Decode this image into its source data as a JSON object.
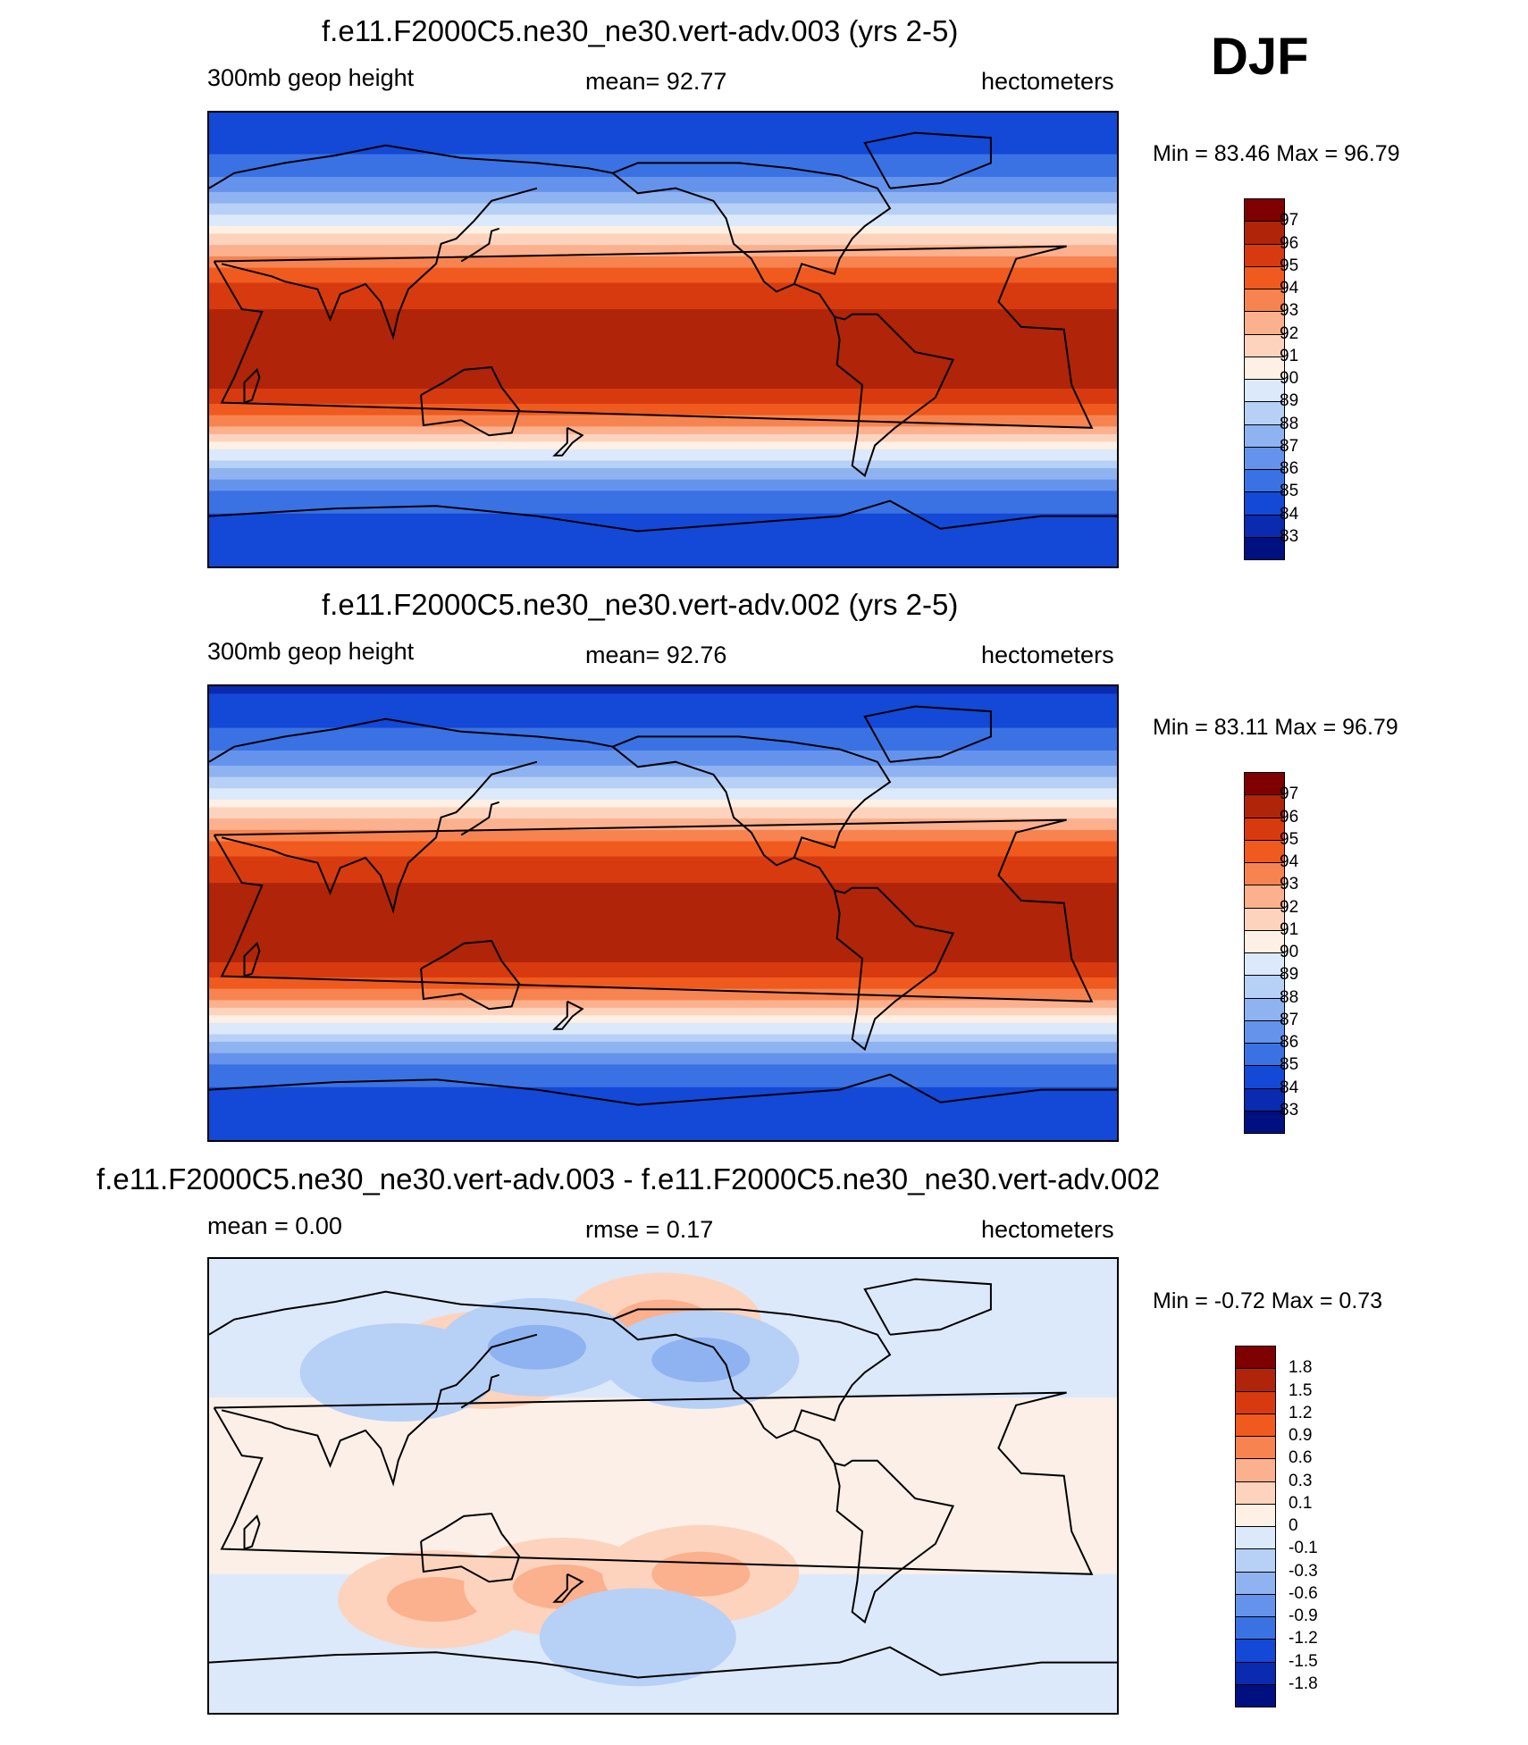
{
  "season": "DJF",
  "panels": [
    {
      "title": "f.e11.F2000C5.ne30_ne30.vert-adv.003 (yrs 2-5)",
      "left": "300mb geop height",
      "center": "mean=  92.77",
      "right": "hectometers",
      "minmax": "Min =  83.46 Max =  96.79"
    },
    {
      "title": "f.e11.F2000C5.ne30_ne30.vert-adv.002 (yrs 2-5)",
      "left": "300mb geop height",
      "center": "mean=  92.76",
      "right": "hectometers",
      "minmax": "Min =  83.11 Max =  96.79"
    },
    {
      "title": "f.e11.F2000C5.ne30_ne30.vert-adv.003 - f.e11.F2000C5.ne30_ne30.vert-adv.002",
      "left": "mean =   0.00",
      "center": "rmse =   0.17",
      "right": "hectometers",
      "minmax": "Min =  -0.72 Max =   0.73"
    }
  ],
  "chart_data": [
    {
      "type": "heatmap",
      "title": "f.e11.F2000C5.ne30_ne30.vert-adv.003 (yrs 2-5)",
      "variable": "300mb geop height",
      "units": "hectometers",
      "mean": 92.77,
      "min": 83.46,
      "max": 96.79,
      "colorbar_levels": [
        97,
        96,
        95,
        94,
        93,
        92,
        91,
        90,
        89,
        88,
        87,
        86,
        85,
        84,
        83
      ],
      "colorbar_colors": [
        "#7f0000",
        "#b0240a",
        "#d83a10",
        "#f05a1e",
        "#f78450",
        "#fbb08e",
        "#fdd3bd",
        "#fef0e4",
        "#dce9fa",
        "#b7d0f6",
        "#8eb3f0",
        "#6593ec",
        "#3a72e4",
        "#1448d6",
        "#0a2ab0",
        "#001080"
      ],
      "zonal_profile": {
        "lat": [
          90,
          80,
          70,
          60,
          50,
          40,
          30,
          20,
          10,
          0,
          -10,
          -20,
          -30,
          -40,
          -50,
          -60,
          -70,
          -80,
          -90
        ],
        "value": [
          84.0,
          84.5,
          85.3,
          86.6,
          88.8,
          91.4,
          93.8,
          95.4,
          96.1,
          96.3,
          96.4,
          96.0,
          94.2,
          91.2,
          88.3,
          86.0,
          84.9,
          84.4,
          84.2
        ]
      }
    },
    {
      "type": "heatmap",
      "title": "f.e11.F2000C5.ne30_ne30.vert-adv.002 (yrs 2-5)",
      "variable": "300mb geop height",
      "units": "hectometers",
      "mean": 92.76,
      "min": 83.11,
      "max": 96.79,
      "colorbar_levels": [
        97,
        96,
        95,
        94,
        93,
        92,
        91,
        90,
        89,
        88,
        87,
        86,
        85,
        84,
        83
      ],
      "colorbar_colors": [
        "#7f0000",
        "#b0240a",
        "#d83a10",
        "#f05a1e",
        "#f78450",
        "#fbb08e",
        "#fdd3bd",
        "#fef0e4",
        "#dce9fa",
        "#b7d0f6",
        "#8eb3f0",
        "#6593ec",
        "#3a72e4",
        "#1448d6",
        "#0a2ab0",
        "#001080"
      ],
      "zonal_profile": {
        "lat": [
          90,
          80,
          70,
          60,
          50,
          40,
          30,
          20,
          10,
          0,
          -10,
          -20,
          -30,
          -40,
          -50,
          -60,
          -70,
          -80,
          -90
        ],
        "value": [
          83.8,
          84.4,
          85.3,
          86.6,
          88.8,
          91.4,
          93.8,
          95.4,
          96.1,
          96.3,
          96.4,
          96.0,
          94.2,
          91.2,
          88.3,
          86.0,
          84.9,
          84.4,
          84.2
        ]
      }
    },
    {
      "type": "heatmap",
      "title": "f.e11.F2000C5.ne30_ne30.vert-adv.003 - f.e11.F2000C5.ne30_ne30.vert-adv.002",
      "units": "hectometers",
      "mean": 0.0,
      "rmse": 0.17,
      "min": -0.72,
      "max": 0.73,
      "colorbar_levels": [
        1.8,
        1.5,
        1.2,
        0.9,
        0.6,
        0.3,
        0.1,
        0,
        -0.1,
        -0.3,
        -0.6,
        -0.9,
        -1.2,
        -1.5,
        -1.8
      ],
      "colorbar_colors": [
        "#7f0000",
        "#b0240a",
        "#d83a10",
        "#f05a1e",
        "#f78450",
        "#fbb08e",
        "#fdd3bd",
        "#fef0e4",
        "#dce9fa",
        "#b7d0f6",
        "#8eb3f0",
        "#6593ec",
        "#3a72e4",
        "#1448d6",
        "#0a2ab0",
        "#001080"
      ],
      "features": [
        {
          "lon": 140,
          "lat": 50,
          "value": 0.45
        },
        {
          "lon": 210,
          "lat": 65,
          "value": 0.5
        },
        {
          "lon": 160,
          "lat": 55,
          "value": -0.6
        },
        {
          "lon": 225,
          "lat": 50,
          "value": -0.35
        },
        {
          "lon": 105,
          "lat": 45,
          "value": -0.2
        },
        {
          "lon": 120,
          "lat": -45,
          "value": 0.4
        },
        {
          "lon": 170,
          "lat": -40,
          "value": 0.35
        },
        {
          "lon": 225,
          "lat": -35,
          "value": 0.4
        },
        {
          "lon": 200,
          "lat": -60,
          "value": -0.3
        }
      ]
    }
  ]
}
